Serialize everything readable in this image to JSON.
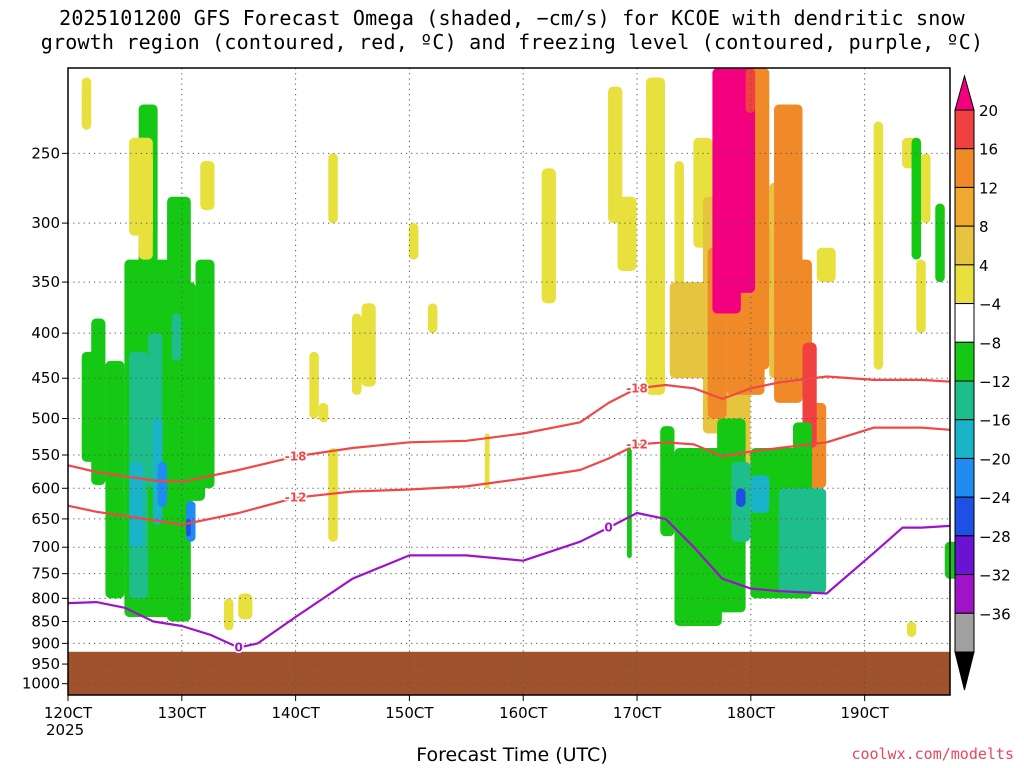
{
  "title": {
    "line1": "2025101200 GFS Forecast Omega (shaded, −cm/s) for KCOE with dendritic snow",
    "line2": "growth region (contoured, red, ºC) and freezing level (contoured, purple, ºC)"
  },
  "credit": "coolwx.com/modelts",
  "chart_data": {
    "type": "heatmap",
    "title": "2025101200 GFS Forecast Omega (shaded, −cm/s) for KCOE with dendritic snow growth region (contoured, red, ºC) and freezing level (contoured, purple, ºC)",
    "xlabel": "Forecast Time (UTC)",
    "x_year": "2025",
    "x_ticks": [
      "120CT",
      "130CT",
      "140CT",
      "150CT",
      "160CT",
      "170CT",
      "180CT",
      "190CT"
    ],
    "x_hours": [
      0,
      24,
      48,
      72,
      96,
      120,
      144,
      168
    ],
    "xlim_hours": [
      0,
      186
    ],
    "ylabel": "",
    "y_ticks": [
      250,
      300,
      350,
      400,
      450,
      500,
      550,
      600,
      650,
      700,
      750,
      800,
      850,
      900,
      950,
      1000
    ],
    "ylim": [
      1030,
      200
    ],
    "y_scale": "log-pressure",
    "grid": "dotted",
    "ground_level_hPa": 920,
    "ground_color": "#a0522d",
    "colorbar": {
      "labels": [
        "20",
        "16",
        "12",
        "8",
        "4",
        "−4",
        "−8",
        "−12",
        "−16",
        "−20",
        "−24",
        "−28",
        "−32",
        "−36"
      ],
      "colors": [
        "#f2007f",
        "#f04040",
        "#f08a28",
        "#f0a830",
        "#e6c440",
        "#e8e03c",
        "#ffffff",
        "#14c814",
        "#1ebe8c",
        "#19b4c8",
        "#1e8cf0",
        "#1e50e6",
        "#6a14d2",
        "#a014c8",
        "#a0a0a0",
        "#000000"
      ]
    },
    "series": [
      {
        "name": "-18",
        "color": "#f04848",
        "points": [
          [
            0,
            565
          ],
          [
            6,
            575
          ],
          [
            18,
            588
          ],
          [
            24,
            590
          ],
          [
            36,
            572
          ],
          [
            48,
            552
          ],
          [
            60,
            540
          ],
          [
            72,
            532
          ],
          [
            84,
            530
          ],
          [
            96,
            520
          ],
          [
            108,
            505
          ],
          [
            114,
            480
          ],
          [
            120,
            462
          ],
          [
            126,
            458
          ],
          [
            132,
            462
          ],
          [
            138,
            475
          ],
          [
            144,
            462
          ],
          [
            150,
            455
          ],
          [
            160,
            448
          ],
          [
            170,
            452
          ],
          [
            180,
            452
          ],
          [
            186,
            454
          ]
        ]
      },
      {
        "name": "-12",
        "color": "#f04848",
        "points": [
          [
            0,
            628
          ],
          [
            6,
            638
          ],
          [
            18,
            652
          ],
          [
            24,
            660
          ],
          [
            36,
            640
          ],
          [
            48,
            615
          ],
          [
            60,
            605
          ],
          [
            72,
            602
          ],
          [
            84,
            597
          ],
          [
            96,
            585
          ],
          [
            108,
            572
          ],
          [
            114,
            555
          ],
          [
            120,
            535
          ],
          [
            126,
            532
          ],
          [
            132,
            535
          ],
          [
            138,
            552
          ],
          [
            144,
            545
          ],
          [
            150,
            540
          ],
          [
            160,
            532
          ],
          [
            170,
            512
          ],
          [
            180,
            512
          ],
          [
            186,
            515
          ]
        ]
      },
      {
        "name": "0",
        "color": "#9b14c8",
        "points": [
          [
            0,
            810
          ],
          [
            6,
            808
          ],
          [
            12,
            820
          ],
          [
            18,
            850
          ],
          [
            24,
            860
          ],
          [
            30,
            880
          ],
          [
            36,
            910
          ],
          [
            40,
            900
          ],
          [
            48,
            840
          ],
          [
            60,
            760
          ],
          [
            72,
            715
          ],
          [
            84,
            715
          ],
          [
            96,
            725
          ],
          [
            108,
            690
          ],
          [
            114,
            665
          ],
          [
            120,
            640
          ],
          [
            126,
            650
          ],
          [
            132,
            700
          ],
          [
            138,
            760
          ],
          [
            144,
            780
          ],
          [
            150,
            785
          ],
          [
            160,
            790
          ],
          [
            170,
            710
          ],
          [
            176,
            665
          ],
          [
            180,
            665
          ],
          [
            186,
            662
          ]
        ]
      }
    ]
  }
}
